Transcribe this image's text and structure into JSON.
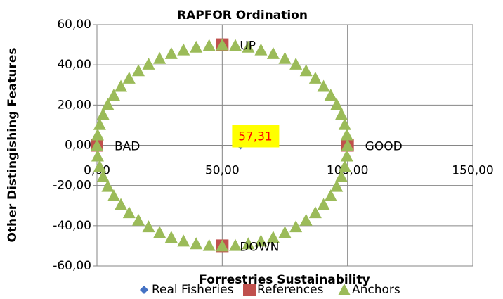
{
  "chart_data": {
    "type": "scatter",
    "title": "RAPFOR Ordination",
    "x_label": "Forrestries Sustainability",
    "y_label": "Other Distingishing Features",
    "xlim": [
      0,
      150
    ],
    "ylim": [
      -60,
      60
    ],
    "xticks": [
      {
        "value": 0,
        "label": "0,00"
      },
      {
        "value": 50,
        "label": "50,00"
      },
      {
        "value": 100,
        "label": "100,00"
      },
      {
        "value": 150,
        "label": "150,00"
      }
    ],
    "yticks": [
      {
        "value": -60,
        "label": "-60,00"
      },
      {
        "value": -40,
        "label": "-40,00"
      },
      {
        "value": -20,
        "label": "-20,00"
      },
      {
        "value": 0,
        "label": "0,00"
      },
      {
        "value": 20,
        "label": "20,00"
      },
      {
        "value": 40,
        "label": "40,00"
      },
      {
        "value": 60,
        "label": "60,00"
      }
    ],
    "grid": true,
    "legend": "bottom",
    "series": [
      {
        "name": "Real Fisheries",
        "color": "#4472c4",
        "marker": "diamond",
        "x": [
          57.31
        ],
        "y": [
          0
        ],
        "value_labels": [
          "57,31"
        ]
      },
      {
        "name": "References",
        "color": "#c0504d",
        "marker": "square",
        "x": [
          0,
          100,
          50,
          50
        ],
        "y": [
          0,
          0,
          50,
          -50
        ],
        "point_labels": [
          "BAD",
          "GOOD",
          "UP",
          "DOWN"
        ]
      },
      {
        "name": "Anchors",
        "color": "#9bbb59",
        "marker": "triangle",
        "x": [
          100,
          99.73,
          98.91,
          97.55,
          95.68,
          93.3,
          90.45,
          87.16,
          83.46,
          79.39,
          75,
          70.34,
          65.45,
          60.4,
          55.23,
          50,
          44.77,
          39.6,
          34.55,
          29.66,
          25,
          20.61,
          16.54,
          12.84,
          9.55,
          6.7,
          4.32,
          2.45,
          1.09,
          0.27,
          0,
          0.27,
          1.09,
          2.45,
          4.32,
          6.7,
          9.55,
          12.84,
          16.54,
          20.61,
          25,
          29.66,
          34.55,
          39.6,
          44.77,
          50,
          55.23,
          60.4,
          65.45,
          70.34,
          75,
          79.39,
          83.46,
          87.16,
          90.45,
          93.3,
          95.68,
          97.55,
          98.91,
          99.73
        ],
        "y": [
          0,
          5.23,
          10.4,
          15.45,
          20.34,
          25,
          29.39,
          33.46,
          37.16,
          40.45,
          43.3,
          45.68,
          47.55,
          48.91,
          49.73,
          50,
          49.73,
          48.91,
          47.55,
          45.68,
          43.3,
          40.45,
          37.16,
          33.46,
          29.39,
          25,
          20.34,
          15.45,
          10.4,
          5.23,
          0,
          -5.23,
          -10.4,
          -15.45,
          -20.34,
          -25,
          -29.39,
          -33.46,
          -37.16,
          -40.45,
          -43.3,
          -45.68,
          -47.55,
          -48.91,
          -49.73,
          -50,
          -49.73,
          -48.91,
          -47.55,
          -45.68,
          -43.3,
          -40.45,
          -37.16,
          -33.46,
          -29.39,
          -25,
          -20.34,
          -15.45,
          -10.4,
          -5.23
        ]
      }
    ]
  }
}
